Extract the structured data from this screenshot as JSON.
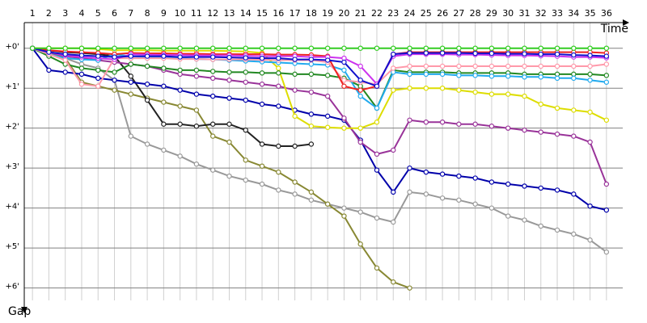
{
  "chart_data": {
    "type": "line",
    "x_label": "Time",
    "y_label": "Gap",
    "x": [
      1,
      2,
      3,
      4,
      5,
      6,
      7,
      8,
      9,
      10,
      11,
      12,
      13,
      14,
      15,
      16,
      17,
      18,
      19,
      20,
      21,
      22,
      23,
      24,
      25,
      26,
      27,
      28,
      29,
      30,
      31,
      32,
      33,
      34,
      35,
      36
    ],
    "xlim": [
      0.5,
      36.5
    ],
    "xticks": [
      1,
      2,
      3,
      4,
      5,
      6,
      7,
      8,
      9,
      10,
      11,
      12,
      13,
      14,
      15,
      16,
      17,
      18,
      19,
      20,
      21,
      22,
      23,
      24,
      25,
      26,
      27,
      28,
      29,
      30,
      31,
      32,
      33,
      34,
      35,
      36
    ],
    "ylim": [
      -0.6,
      6.3
    ],
    "yticks": [
      {
        "value": 0,
        "label": "+0'"
      },
      {
        "value": 1,
        "label": "+1'"
      },
      {
        "value": 2,
        "label": "+2'"
      },
      {
        "value": 3,
        "label": "+3'"
      },
      {
        "value": 4,
        "label": "+4'"
      },
      {
        "value": 5,
        "label": "+5'"
      },
      {
        "value": 6,
        "label": "+6'"
      }
    ],
    "y_inverted": true,
    "grid": true,
    "series": [
      {
        "color": "#999999",
        "values": [
          0,
          0.05,
          0.25,
          0.4,
          0.5,
          0.8,
          2.2,
          2.4,
          2.55,
          2.7,
          2.9,
          3.05,
          3.2,
          3.3,
          3.4,
          3.55,
          3.65,
          3.8,
          3.9,
          4.0,
          4.1,
          4.25,
          4.35,
          3.6,
          3.65,
          3.75,
          3.8,
          3.9,
          4.0,
          4.2,
          4.3,
          4.45,
          4.55,
          4.65,
          4.8,
          5.1
        ]
      },
      {
        "color": "#888833",
        "values": [
          0,
          0.1,
          0.25,
          0.85,
          0.95,
          1.05,
          1.15,
          1.25,
          1.35,
          1.45,
          1.55,
          2.2,
          2.35,
          2.8,
          2.95,
          3.1,
          3.35,
          3.6,
          3.9,
          4.2,
          4.9,
          5.5,
          5.85,
          6.0,
          null,
          null,
          null,
          null,
          null,
          null,
          null,
          null,
          null,
          null,
          null,
          null
        ]
      },
      {
        "color": "#222222",
        "values": [
          0,
          0.05,
          0.1,
          0.12,
          0.15,
          0.2,
          0.7,
          1.3,
          1.9,
          1.9,
          1.95,
          1.9,
          1.9,
          2.05,
          2.4,
          2.45,
          2.45,
          2.4,
          null,
          null,
          null,
          null,
          null,
          null,
          null,
          null,
          null,
          null,
          null,
          null,
          null,
          null,
          null,
          null,
          null,
          null
        ]
      },
      {
        "color": "#0000aa",
        "values": [
          0,
          0.55,
          0.6,
          0.65,
          0.75,
          0.8,
          0.85,
          0.9,
          0.95,
          1.05,
          1.15,
          1.2,
          1.25,
          1.3,
          1.4,
          1.45,
          1.55,
          1.65,
          1.7,
          1.8,
          2.3,
          3.05,
          3.6,
          3.0,
          3.1,
          3.15,
          3.2,
          3.25,
          3.35,
          3.4,
          3.45,
          3.5,
          3.55,
          3.65,
          3.95,
          4.05
        ]
      },
      {
        "color": "#993399",
        "values": [
          0,
          0.1,
          0.2,
          0.25,
          0.3,
          0.35,
          0.4,
          0.45,
          0.55,
          0.65,
          0.7,
          0.75,
          0.8,
          0.85,
          0.9,
          0.95,
          1.05,
          1.1,
          1.2,
          1.75,
          2.35,
          2.65,
          2.55,
          1.8,
          1.85,
          1.85,
          1.9,
          1.9,
          1.95,
          2.0,
          2.05,
          2.1,
          2.15,
          2.2,
          2.35,
          3.4
        ]
      },
      {
        "color": "#dddd00",
        "values": [
          0,
          0,
          0,
          0,
          0.02,
          0.05,
          0.05,
          0.05,
          0.06,
          0.06,
          0.06,
          0.06,
          0.07,
          0.08,
          0.12,
          0.5,
          1.7,
          1.95,
          1.98,
          2.0,
          2.0,
          1.85,
          1.05,
          1.0,
          1.0,
          1.0,
          1.05,
          1.1,
          1.15,
          1.15,
          1.2,
          1.4,
          1.5,
          1.55,
          1.6,
          1.8
        ]
      },
      {
        "color": "#228822",
        "values": [
          0,
          0.2,
          0.4,
          0.5,
          0.55,
          0.6,
          0.4,
          0.45,
          0.5,
          0.55,
          0.55,
          0.58,
          0.6,
          0.6,
          0.62,
          0.62,
          0.65,
          0.65,
          0.68,
          0.75,
          0.95,
          1.5,
          0.55,
          0.6,
          0.6,
          0.6,
          0.62,
          0.62,
          0.62,
          0.62,
          0.65,
          0.65,
          0.65,
          0.65,
          0.65,
          0.68
        ]
      },
      {
        "color": "#22aaee",
        "values": [
          0,
          0.15,
          0.25,
          0.28,
          0.3,
          0.15,
          0.2,
          0.22,
          0.23,
          0.25,
          0.27,
          0.28,
          0.3,
          0.32,
          0.34,
          0.36,
          0.38,
          0.4,
          0.42,
          0.55,
          1.2,
          1.5,
          0.6,
          0.65,
          0.65,
          0.65,
          0.68,
          0.68,
          0.7,
          0.7,
          0.72,
          0.72,
          0.75,
          0.75,
          0.8,
          0.85
        ]
      },
      {
        "color": "#ff99aa",
        "values": [
          0,
          0.15,
          0.3,
          0.9,
          0.95,
          0.25,
          0.25,
          0.25,
          0.25,
          0.27,
          0.27,
          0.28,
          0.28,
          0.28,
          0.29,
          0.3,
          0.3,
          0.3,
          0.35,
          0.8,
          0.85,
          0.9,
          0.5,
          0.45,
          0.45,
          0.45,
          0.45,
          0.45,
          0.45,
          0.45,
          0.45,
          0.45,
          0.45,
          0.45,
          0.45,
          0.4
        ]
      },
      {
        "color": "#ee2222",
        "values": [
          0,
          0.05,
          0.08,
          0.1,
          0.12,
          0.15,
          0.12,
          0.13,
          0.13,
          0.14,
          0.14,
          0.15,
          0.15,
          0.15,
          0.15,
          0.16,
          0.16,
          0.17,
          0.2,
          0.95,
          1.05,
          0.95,
          0.15,
          0.1,
          0.1,
          0.1,
          0.1,
          0.1,
          0.1,
          0.1,
          0.1,
          0.1,
          0.1,
          0.1,
          0.1,
          0.12
        ]
      },
      {
        "color": "#cc33ee",
        "values": [
          0,
          0.1,
          0.18,
          0.22,
          0.25,
          0.28,
          0.15,
          0.16,
          0.17,
          0.17,
          0.18,
          0.18,
          0.18,
          0.19,
          0.2,
          0.2,
          0.2,
          0.22,
          0.22,
          0.25,
          0.45,
          0.9,
          0.2,
          0.15,
          0.15,
          0.15,
          0.16,
          0.16,
          0.17,
          0.18,
          0.18,
          0.19,
          0.2,
          0.22,
          0.22,
          0.24
        ]
      },
      {
        "color": "#1111cc",
        "values": [
          0,
          0.1,
          0.15,
          0.18,
          0.2,
          0.22,
          0.2,
          0.2,
          0.2,
          0.22,
          0.22,
          0.22,
          0.23,
          0.24,
          0.25,
          0.25,
          0.28,
          0.28,
          0.3,
          0.35,
          0.8,
          0.95,
          0.15,
          0.12,
          0.12,
          0.12,
          0.12,
          0.13,
          0.13,
          0.14,
          0.14,
          0.15,
          0.15,
          0.17,
          0.18,
          0.2
        ]
      },
      {
        "color": "#33cc22",
        "values": [
          0,
          0,
          0,
          0,
          0,
          0,
          0,
          0,
          0,
          0,
          0,
          0,
          0,
          0,
          0,
          0,
          0,
          0,
          0,
          0,
          0,
          0,
          0,
          0,
          0,
          0,
          0,
          0,
          0,
          0,
          0,
          0,
          0,
          0,
          0,
          0
        ]
      }
    ]
  }
}
